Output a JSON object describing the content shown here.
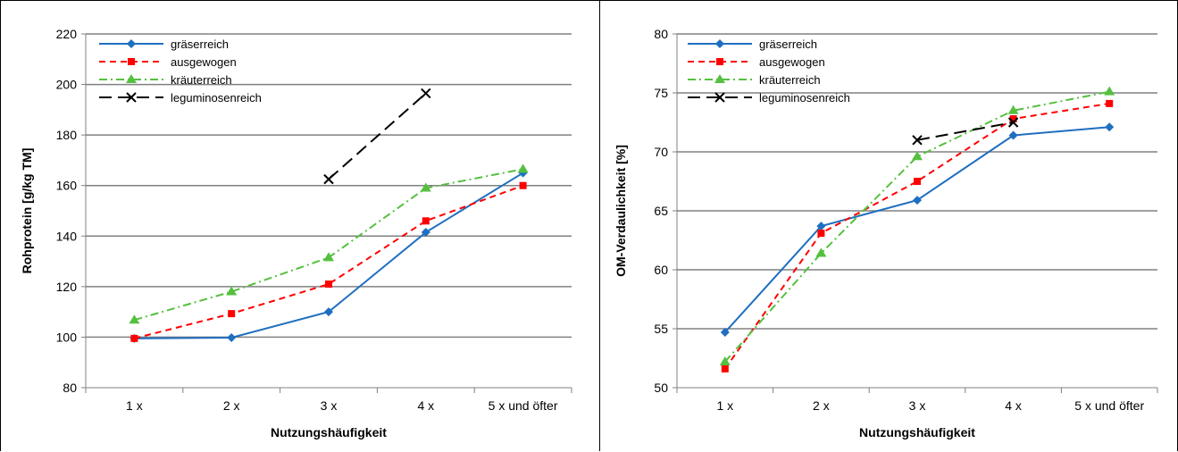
{
  "chart_data": [
    {
      "type": "line",
      "xlabel": "Nutzungshäufigkeit",
      "ylabel": "Rohprotein [g/kg TM]",
      "categories": [
        "1 x",
        "2 x",
        "3 x",
        "4 x",
        "5 x und öfter"
      ],
      "ylim": [
        80,
        220
      ],
      "yticks": [
        80,
        100,
        120,
        140,
        160,
        180,
        200,
        220
      ],
      "grid": true,
      "legend": "top-left",
      "series": [
        {
          "name": "gräserreich",
          "color": "#1f6fc0",
          "dash": "",
          "marker": "diamond",
          "values": [
            99.5,
            99.8,
            110,
            141.5,
            165
          ]
        },
        {
          "name": "ausgewogen",
          "color": "#ff0000",
          "dash": "7,5",
          "marker": "square",
          "values": [
            99.5,
            109.3,
            121,
            146,
            160
          ]
        },
        {
          "name": "kräuterreich",
          "color": "#55c040",
          "dash": "9,4,2,4",
          "marker": "triangle",
          "values": [
            106.8,
            118,
            131.5,
            159,
            166.5
          ]
        },
        {
          "name": "leguminosenreich",
          "color": "#000000",
          "dash": "14,7",
          "marker": "x",
          "values": [
            null,
            null,
            162.5,
            196.5,
            null
          ]
        }
      ]
    },
    {
      "type": "line",
      "xlabel": "Nutzungshäufigkeit",
      "ylabel": "OM-Verdaulichkeit  [%]",
      "categories": [
        "1 x",
        "2 x",
        "3 x",
        "4 x",
        "5 x und öfter"
      ],
      "ylim": [
        50,
        80
      ],
      "yticks": [
        50,
        55,
        60,
        65,
        70,
        75,
        80
      ],
      "grid": true,
      "legend": "top-left",
      "series": [
        {
          "name": "gräserreich",
          "color": "#1f6fc0",
          "dash": "",
          "marker": "diamond",
          "values": [
            54.7,
            63.7,
            65.9,
            71.4,
            72.1
          ]
        },
        {
          "name": "ausgewogen",
          "color": "#ff0000",
          "dash": "7,5",
          "marker": "square",
          "values": [
            51.6,
            63.1,
            67.5,
            72.8,
            74.1
          ]
        },
        {
          "name": "kräuterreich",
          "color": "#55c040",
          "dash": "9,4,2,4",
          "marker": "triangle",
          "values": [
            52.2,
            61.4,
            69.6,
            73.5,
            75.1
          ]
        },
        {
          "name": "leguminosenreich",
          "color": "#000000",
          "dash": "14,7",
          "marker": "x",
          "values": [
            null,
            null,
            71.0,
            72.5,
            null
          ]
        }
      ]
    }
  ]
}
